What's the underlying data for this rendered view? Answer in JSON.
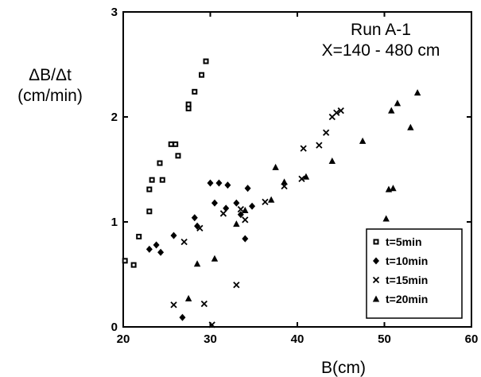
{
  "chart_data": {
    "type": "scatter",
    "title": "",
    "annotation": [
      "Run A-1",
      "X=140 - 480 cm"
    ],
    "xlabel": "B(cm)",
    "ylabel": [
      "ΔB/Δt",
      "(cm/min)"
    ],
    "xlim": [
      20,
      60
    ],
    "ylim": [
      0,
      3
    ],
    "xticks": [
      20,
      30,
      40,
      50,
      60
    ],
    "yticks": [
      0,
      1,
      2,
      3
    ],
    "grid": false,
    "legend_position": "bottom-right",
    "series": [
      {
        "name": "t=5min",
        "marker": "square",
        "points": [
          [
            20.2,
            0.63
          ],
          [
            21.2,
            0.59
          ],
          [
            21.8,
            0.86
          ],
          [
            23.0,
            1.1
          ],
          [
            23.0,
            1.31
          ],
          [
            23.3,
            1.4
          ],
          [
            24.2,
            1.56
          ],
          [
            24.5,
            1.4
          ],
          [
            25.5,
            1.74
          ],
          [
            26.0,
            1.74
          ],
          [
            26.3,
            1.63
          ],
          [
            27.5,
            2.08
          ],
          [
            27.5,
            2.12
          ],
          [
            28.2,
            2.24
          ],
          [
            29.0,
            2.4
          ],
          [
            29.5,
            2.53
          ]
        ]
      },
      {
        "name": "t=10min",
        "marker": "diamond",
        "points": [
          [
            23.0,
            0.74
          ],
          [
            23.8,
            0.78
          ],
          [
            24.3,
            0.71
          ],
          [
            25.8,
            0.87
          ],
          [
            26.8,
            0.09
          ],
          [
            28.2,
            1.04
          ],
          [
            28.5,
            0.96
          ],
          [
            30.0,
            1.37
          ],
          [
            30.5,
            1.18
          ],
          [
            31.0,
            1.37
          ],
          [
            31.8,
            1.13
          ],
          [
            32.0,
            1.35
          ],
          [
            33.0,
            1.18
          ],
          [
            33.5,
            1.07
          ],
          [
            34.0,
            0.84
          ],
          [
            34.3,
            1.32
          ],
          [
            34.8,
            1.15
          ]
        ]
      },
      {
        "name": "t=15min",
        "marker": "cross",
        "points": [
          [
            25.8,
            0.21
          ],
          [
            27.0,
            0.81
          ],
          [
            28.8,
            0.94
          ],
          [
            29.3,
            0.22
          ],
          [
            30.2,
            0.02
          ],
          [
            31.5,
            1.08
          ],
          [
            33.0,
            0.4
          ],
          [
            33.5,
            1.12
          ],
          [
            34.0,
            1.02
          ],
          [
            36.3,
            1.19
          ],
          [
            38.5,
            1.34
          ],
          [
            40.5,
            1.41
          ],
          [
            40.7,
            1.7
          ],
          [
            42.5,
            1.73
          ],
          [
            43.3,
            1.85
          ],
          [
            44.0,
            2.0
          ],
          [
            44.5,
            2.04
          ],
          [
            45.0,
            2.06
          ]
        ]
      },
      {
        "name": "t=20min",
        "marker": "triangle",
        "points": [
          [
            27.5,
            0.27
          ],
          [
            28.5,
            0.6
          ],
          [
            30.5,
            0.65
          ],
          [
            33.0,
            0.98
          ],
          [
            34.0,
            1.11
          ],
          [
            37.0,
            1.21
          ],
          [
            37.5,
            1.52
          ],
          [
            38.5,
            1.38
          ],
          [
            41.0,
            1.43
          ],
          [
            44.0,
            1.58
          ],
          [
            47.5,
            1.77
          ],
          [
            50.2,
            1.03
          ],
          [
            50.5,
            1.31
          ],
          [
            50.8,
            2.06
          ],
          [
            51.0,
            1.32
          ],
          [
            51.5,
            2.13
          ],
          [
            53.0,
            1.9
          ],
          [
            53.8,
            2.23
          ]
        ]
      }
    ]
  }
}
